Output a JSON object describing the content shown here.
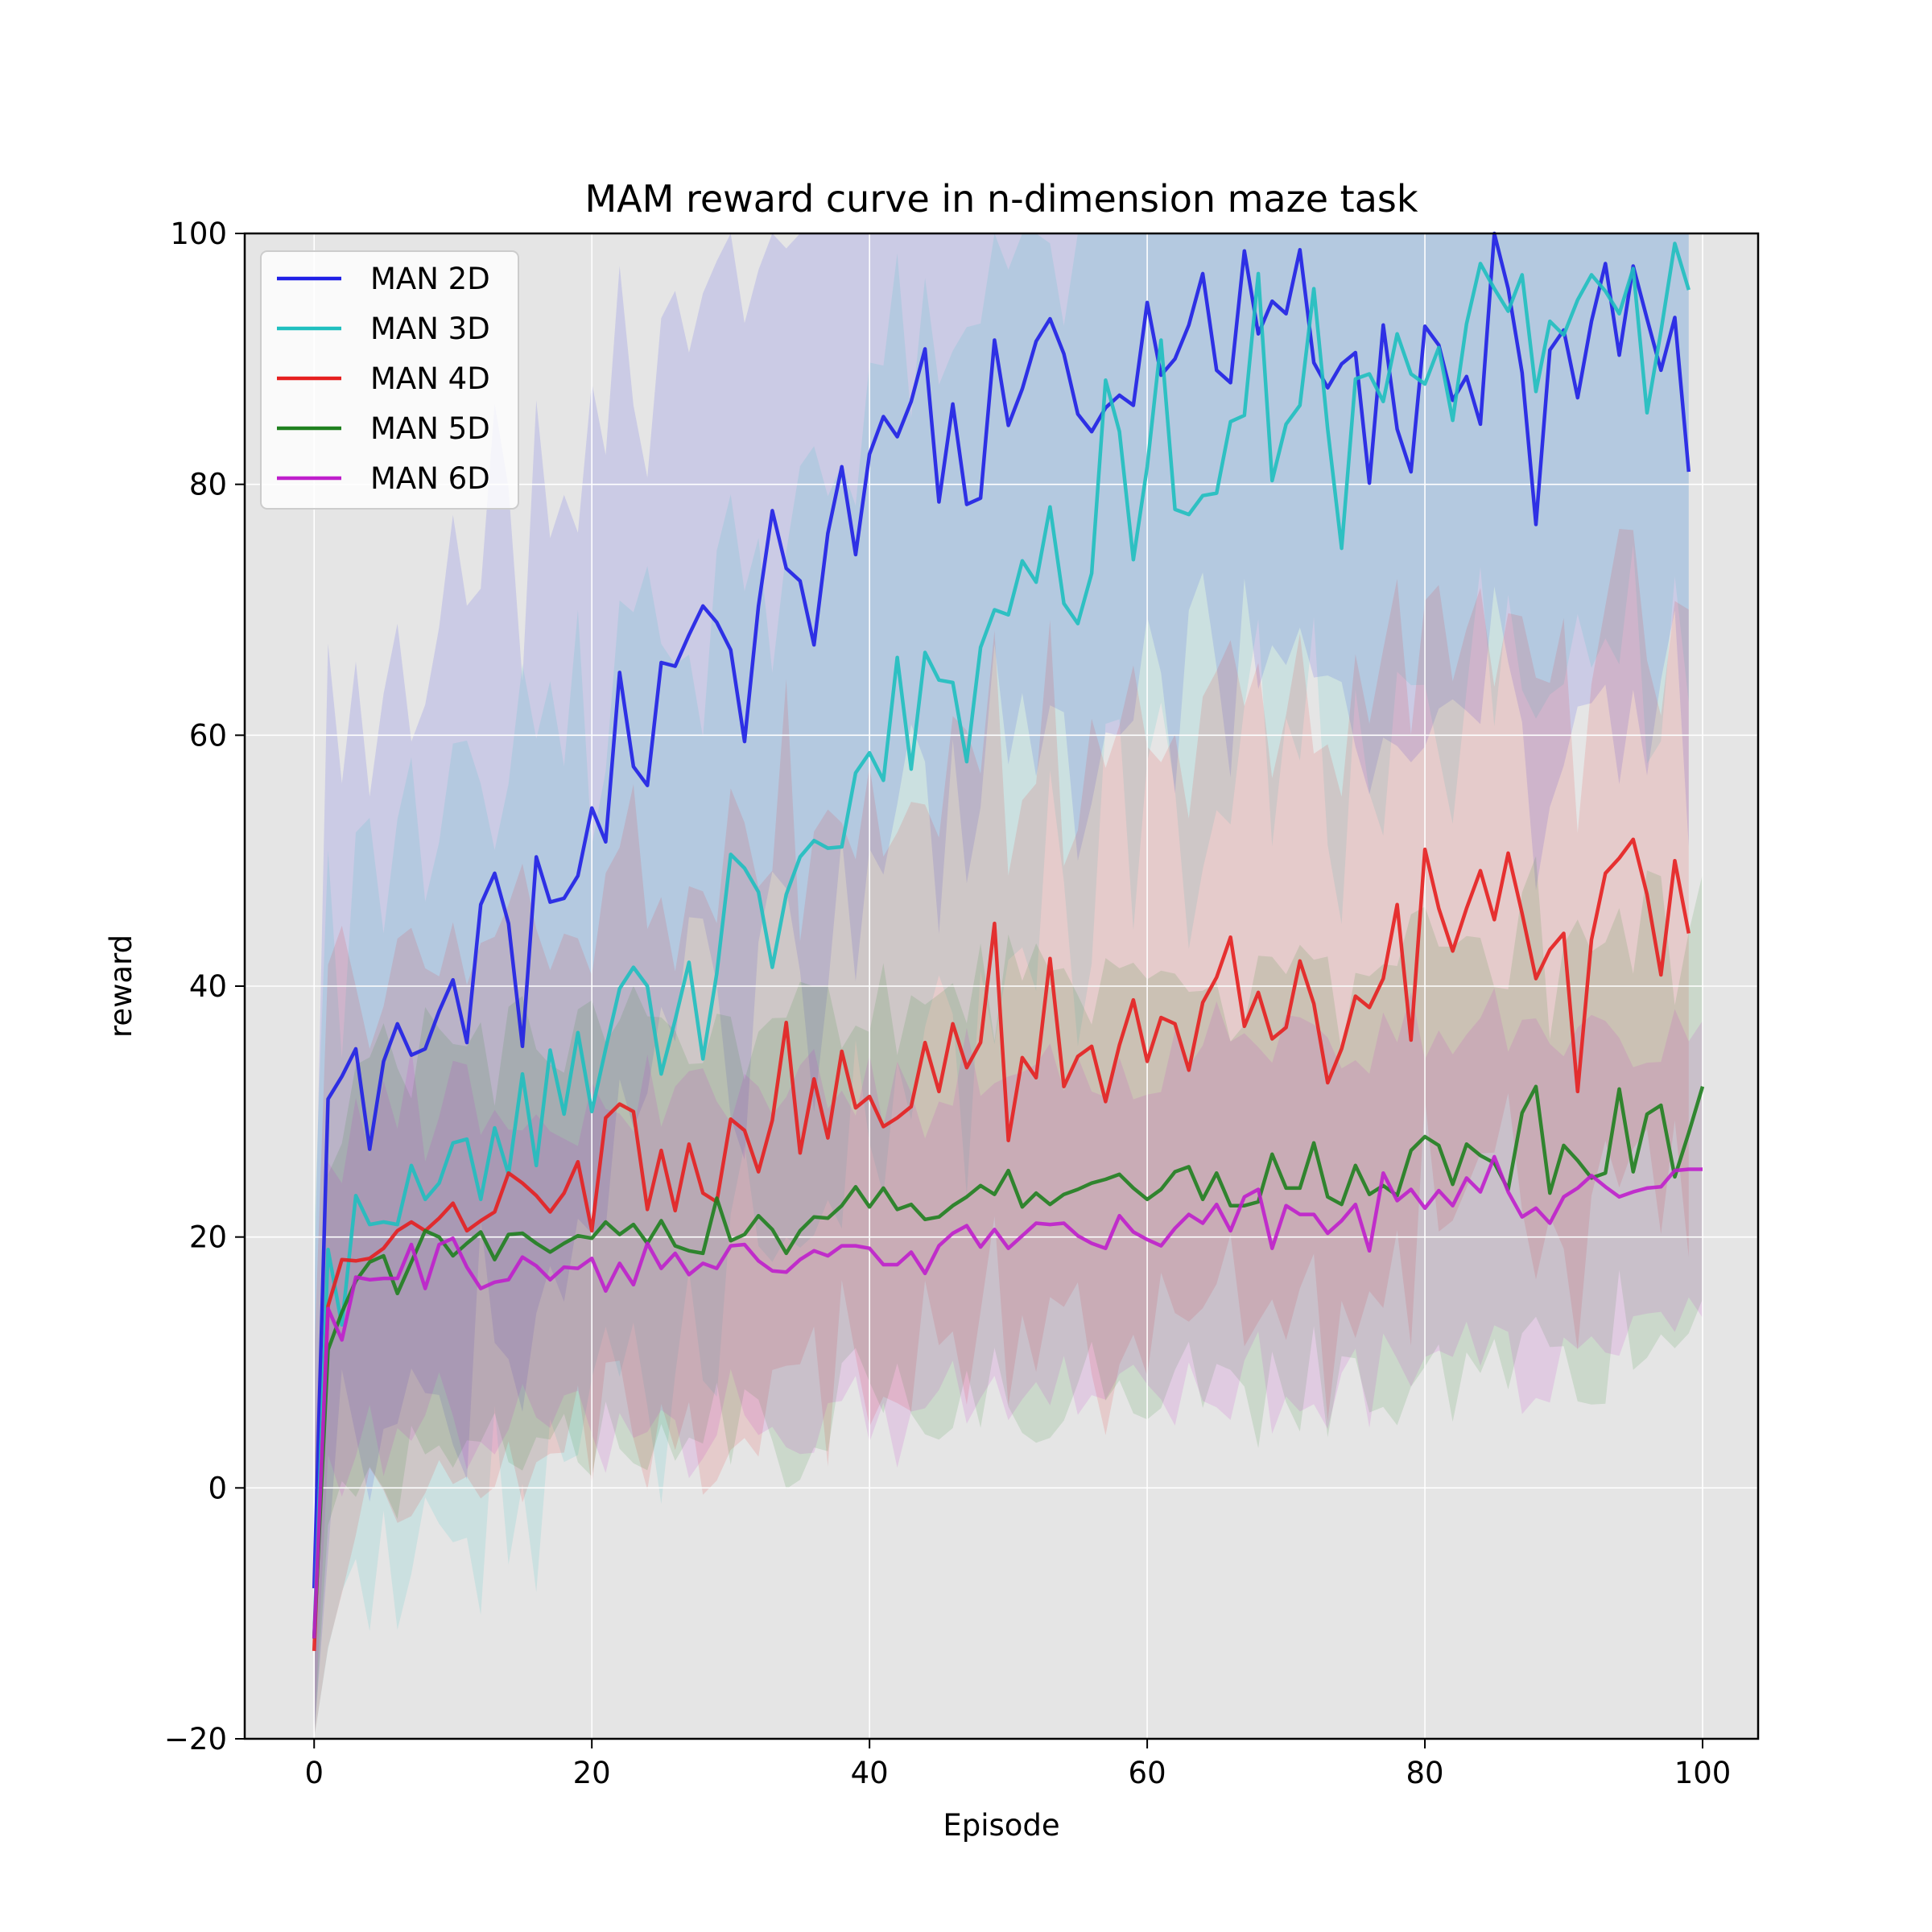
{
  "chart_data": {
    "type": "line",
    "title": "MAM reward curve in n-dimension maze task",
    "xlabel": "Episode",
    "ylabel": "reward",
    "xlim": [
      -5,
      104
    ],
    "ylim": [
      -20,
      100
    ],
    "xticks": [
      "0",
      "20",
      "40",
      "60",
      "80",
      "100"
    ],
    "yticks": [
      "−20",
      "0",
      "20",
      "40",
      "60",
      "80",
      "100"
    ],
    "grid": true,
    "legend_position": "top-left",
    "background_color": "#e5e5e5",
    "series": [
      {
        "name": "MAN 2D",
        "color": "#1f1fe6",
        "y": [
          -8,
          31,
          32.8,
          35,
          27,
          34,
          37,
          34.5,
          35,
          38,
          40.5,
          35.5,
          46.5,
          49,
          45,
          35.2,
          50.3,
          46.7,
          47,
          48.8,
          54.2,
          51.5,
          65,
          57.5,
          56,
          65.8,
          65.5,
          68,
          70.3,
          69,
          66.8,
          59.5,
          70.3,
          77.9,
          73.3,
          72.3,
          67.2,
          76.1,
          81.4,
          74.4,
          82.4,
          85.4,
          83.8,
          86.6,
          90.8,
          78.6,
          86.4,
          78.4,
          78.9,
          91.5,
          84.7,
          87.6,
          91.4,
          93.2,
          90.4,
          85.6,
          84.2,
          86.1,
          87.1,
          86.3,
          94.5,
          88.7,
          90,
          92.7,
          96.8,
          89.1,
          88.1,
          98.6,
          92,
          94.6,
          93.6,
          98.7,
          89.7,
          87.7,
          89.6,
          90.5,
          80.1,
          92.7,
          84.4,
          81,
          92.6,
          91.1,
          86.7,
          88.6,
          84.8,
          100,
          95.6,
          88.9,
          76.8,
          90.7,
          92.3,
          86.9,
          93,
          97.6,
          90.3,
          97.4,
          93.2,
          89.1,
          93.3,
          81
        ]
      },
      {
        "name": "MAN 3D",
        "color": "#1fbfbf",
        "y": [
          -12,
          19,
          13,
          23.3,
          21,
          21.2,
          21,
          25.7,
          23,
          24.3,
          27.5,
          27.8,
          23,
          28.7,
          25,
          33,
          25.7,
          34.9,
          29.8,
          36.3,
          30,
          35,
          39.8,
          41.5,
          40,
          33,
          37.3,
          41.9,
          34.2,
          41,
          50.5,
          49.4,
          47.5,
          41.5,
          47.3,
          50.3,
          51.6,
          51,
          51.1,
          57,
          58.6,
          56.4,
          66.2,
          57.3,
          66.6,
          64.4,
          64.2,
          57.9,
          67,
          70,
          69.6,
          73.9,
          72.2,
          78.2,
          70.5,
          68.9,
          72.9,
          88.3,
          84.2,
          74,
          81.4,
          91.5,
          78,
          77.6,
          79.1,
          79.3,
          85,
          85.5,
          96.8,
          80.3,
          84.8,
          86.3,
          95.6,
          84.4,
          74.9,
          88.4,
          88.8,
          86.6,
          92,
          88.8,
          88,
          90.9,
          85.1,
          92.8,
          97.6,
          95.6,
          93.8,
          96.7,
          87.4,
          93,
          91.9,
          94.7,
          96.7,
          95.4,
          93.6,
          97.2,
          85.7,
          92.2,
          99.2,
          95.5
        ]
      },
      {
        "name": "MAN 4D",
        "color": "#e61f1f",
        "y": [
          -13,
          14.5,
          18.2,
          18.1,
          18.3,
          19.1,
          20.5,
          21.2,
          20.5,
          21.5,
          22.7,
          20.5,
          21.3,
          22,
          25.1,
          24.3,
          23.3,
          22,
          23.5,
          26,
          20.5,
          29.5,
          30.6,
          30,
          22.2,
          26.9,
          22.1,
          27.4,
          23.5,
          22.8,
          29.4,
          28.5,
          25.2,
          29.3,
          37.1,
          26.7,
          32.6,
          27.9,
          34.8,
          30.3,
          31.2,
          28.8,
          29.5,
          30.4,
          35.5,
          31.6,
          37,
          33.5,
          35.5,
          45,
          27.7,
          34.3,
          32.7,
          42.2,
          32,
          34.4,
          35.2,
          30.8,
          35.3,
          38.9,
          34,
          37.5,
          37,
          33.3,
          38.7,
          40.7,
          43.9,
          36.8,
          39.5,
          35.8,
          36.7,
          42,
          38.6,
          32.3,
          35,
          39.2,
          38.3,
          40.6,
          46.5,
          35.7,
          50.9,
          46.2,
          42.8,
          46.2,
          49.2,
          45.3,
          50.6,
          45.8,
          40.6,
          42.9,
          44.2,
          31.6,
          43.7,
          49,
          50.2,
          51.7,
          47.3,
          40.9,
          50,
          44.2
        ]
      },
      {
        "name": "MAN 5D",
        "color": "#1f801f",
        "y": [
          -12,
          11,
          14,
          16.5,
          18,
          18.5,
          15.5,
          18,
          20.5,
          20,
          18.5,
          19.5,
          20.4,
          18.2,
          20.2,
          20.3,
          19.5,
          18.8,
          19.5,
          20.1,
          19.9,
          21.2,
          20.2,
          21,
          19.5,
          21.3,
          19.3,
          18.9,
          18.7,
          23.1,
          19.7,
          20.2,
          21.7,
          20.6,
          18.7,
          20.5,
          21.6,
          21.5,
          22.5,
          24,
          22.4,
          23.9,
          22.2,
          22.6,
          21.4,
          21.6,
          22.5,
          23.2,
          24.1,
          23.4,
          25.3,
          22.4,
          23.5,
          22.6,
          23.4,
          23.8,
          24.3,
          24.6,
          25,
          23.9,
          23,
          23.8,
          25.2,
          25.6,
          23,
          25.1,
          22.5,
          22.5,
          22.8,
          26.6,
          23.9,
          23.9,
          27.5,
          23.2,
          22.6,
          25.7,
          23.4,
          24.1,
          23.3,
          26.9,
          28,
          27.3,
          24.2,
          27.4,
          26.5,
          25.9,
          23.8,
          29.9,
          32,
          23.5,
          27.3,
          26.1,
          24.7,
          25.1,
          31.8,
          25.2,
          29.8,
          30.5,
          24.8,
          28.3,
          32
        ]
      },
      {
        "name": "MAN 6D",
        "color": "#bf1fcc",
        "y": [
          -12,
          14.3,
          11.8,
          16.8,
          16.6,
          16.7,
          16.7,
          19.4,
          15.9,
          19.4,
          19.9,
          17.6,
          15.9,
          16.4,
          16.6,
          18.4,
          17.7,
          16.6,
          17.6,
          17.5,
          18.3,
          15.7,
          17.9,
          16.2,
          19.5,
          17.5,
          18.7,
          17,
          17.9,
          17.5,
          19.3,
          19.4,
          18.1,
          17.3,
          17.2,
          18.2,
          18.9,
          18.5,
          19.3,
          19.3,
          19.1,
          17.8,
          17.8,
          18.8,
          17.1,
          19.3,
          20.3,
          20.9,
          19.2,
          20.6,
          19.1,
          20.1,
          21.1,
          21,
          21.1,
          20.1,
          19.5,
          19.1,
          21.7,
          20.4,
          19.8,
          19.3,
          20.7,
          21.8,
          21.1,
          22.6,
          20.5,
          23.2,
          23.8,
          19.1,
          22.5,
          21.8,
          21.8,
          20.3,
          21.3,
          22.6,
          18.9,
          25.1,
          22.9,
          23.8,
          22.3,
          23.7,
          22.5,
          24.7,
          23.6,
          26.4,
          23.6,
          21.6,
          22.3,
          21.1,
          23.2,
          23.9,
          24.9,
          24,
          23.2,
          23.6,
          23.9,
          24,
          25.3,
          25.4,
          25.4
        ]
      }
    ]
  }
}
